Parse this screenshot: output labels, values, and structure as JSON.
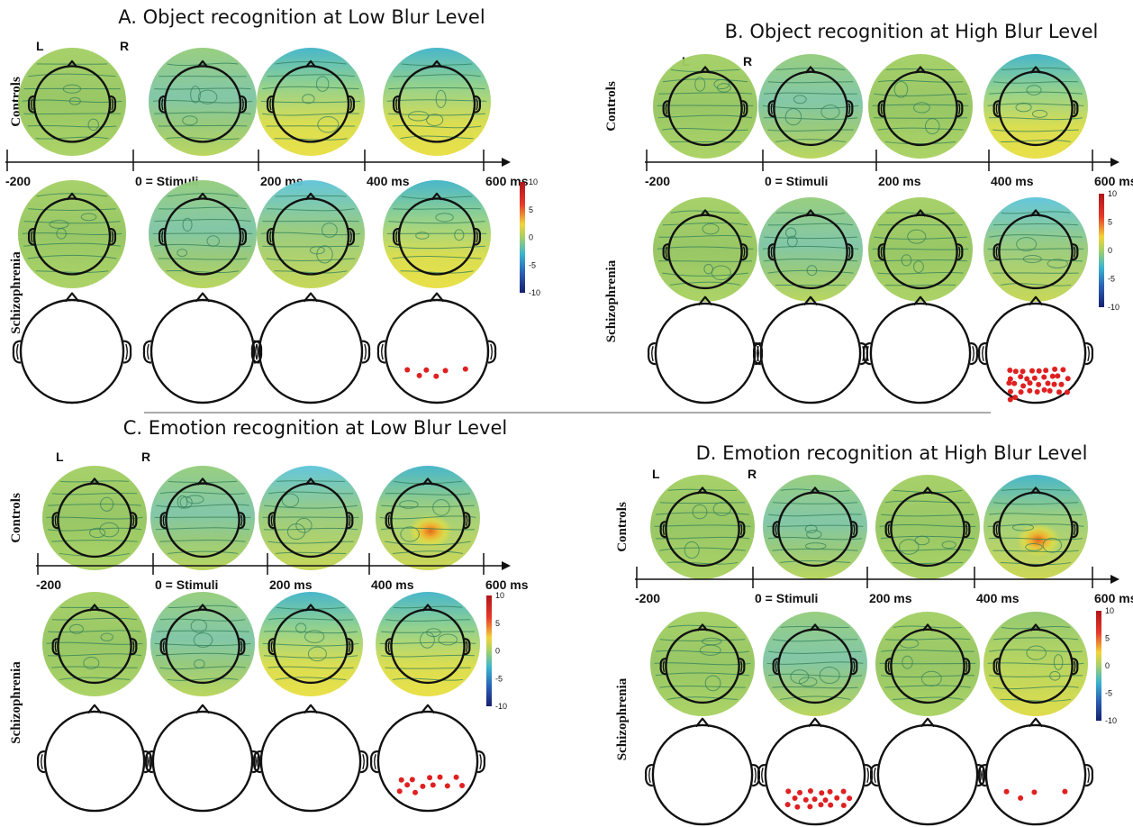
{
  "panels": [
    {
      "id": "A",
      "title": "A. Object recognition at Low Blur Level",
      "left_label": "L",
      "right_label": "R",
      "groups": [
        "Controls",
        "Schizophrenia"
      ],
      "timeline": [
        "-200",
        "0 = Stimuli",
        "200 ms",
        "400 ms",
        "600 ms"
      ],
      "colorbar_ticks": [
        "10",
        "5",
        "0",
        "-5",
        "-10"
      ],
      "controls_maps": [
        "neutral",
        "mild-negative",
        "frontal-neg-posterior-pos",
        "frontal-neg-posterior-pos"
      ],
      "schizophrenia_maps": [
        "neutral",
        "mild-negative",
        "frontal-negative",
        "frontal-neg-posterior-pos"
      ],
      "significant_electrodes": [
        0,
        0,
        0,
        6
      ]
    },
    {
      "id": "B",
      "title": "B. Object recognition at High Blur Level",
      "left_label": "L",
      "right_label": "R",
      "groups": [
        "Controls",
        "Schizophrenia"
      ],
      "timeline": [
        "-200",
        "0 = Stimuli",
        "200 ms",
        "400 ms",
        "600 ms"
      ],
      "colorbar_ticks": [
        "10",
        "5",
        "0",
        "-5",
        "-10"
      ],
      "controls_maps": [
        "neutral",
        "mild-negative",
        "neutral",
        "frontal-neg-posterior-pos"
      ],
      "schizophrenia_maps": [
        "neutral",
        "mild-negative",
        "neutral",
        "frontal-negative"
      ],
      "significant_electrodes": [
        0,
        0,
        0,
        34
      ]
    },
    {
      "id": "C",
      "title": "C. Emotion recognition at Low Blur Level",
      "left_label": "L",
      "right_label": "R",
      "groups": [
        "Controls",
        "Schizophrenia"
      ],
      "timeline": [
        "-200",
        "0 = Stimuli",
        "200 ms",
        "400 ms",
        "600 ms"
      ],
      "colorbar_ticks": [
        "10",
        "5",
        "0",
        "-5",
        "-10"
      ],
      "controls_maps": [
        "neutral",
        "mild-negative",
        "frontal-negative",
        "posterior-peak"
      ],
      "schizophrenia_maps": [
        "neutral",
        "mild-negative",
        "frontal-neg-posterior-pos",
        "frontal-neg-posterior-pos"
      ],
      "significant_electrodes": [
        0,
        0,
        0,
        12
      ]
    },
    {
      "id": "D",
      "title": "D. Emotion recognition at High Blur Level",
      "left_label": "L",
      "right_label": "R",
      "groups": [
        "Controls",
        "Schizophrenia"
      ],
      "timeline": [
        "-200",
        "0 = Stimuli",
        "200 ms",
        "400 ms",
        "600 ms"
      ],
      "colorbar_ticks": [
        "10",
        "5",
        "0",
        "-5",
        "-10"
      ],
      "controls_maps": [
        "neutral",
        "mild-negative",
        "neutral",
        "posterior-peak"
      ],
      "schizophrenia_maps": [
        "neutral",
        "mild-negative",
        "neutral",
        "posterior-positive"
      ],
      "significant_electrodes": [
        0,
        18,
        0,
        4
      ]
    }
  ],
  "colors": {
    "map_base": "#93c45e",
    "negative": "#3fb3c8",
    "frontal_negative": "#5cc4da",
    "positive": "#e8df40",
    "peak": "#e06a1c",
    "contour": "#2f7d5a",
    "outline": "#111111",
    "electrode": "#e02020"
  }
}
